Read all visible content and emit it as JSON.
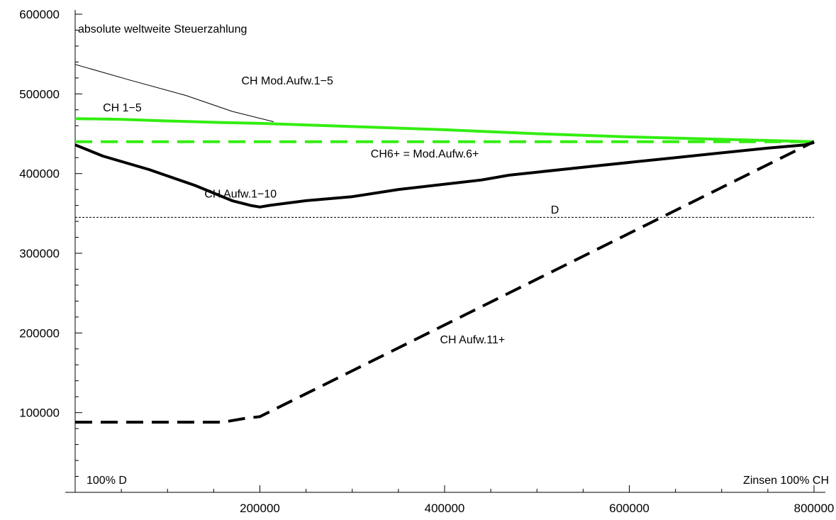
{
  "chart_data": {
    "type": "line",
    "title": "",
    "ylabel": "absolute weltweite Steuerzahlung",
    "xlabel": "",
    "xlim": [
      0,
      810000
    ],
    "ylim": [
      0,
      610000
    ],
    "x_ticks": [
      200000,
      400000,
      600000,
      800000
    ],
    "x_tick_labels": [
      "200000",
      "400000",
      "600000",
      "800000"
    ],
    "y_ticks": [
      100000,
      200000,
      300000,
      400000,
      500000,
      600000
    ],
    "y_tick_labels": [
      "100000",
      "200000",
      "300000",
      "400000",
      "500000",
      "600000"
    ],
    "grid": false,
    "corner_labels": {
      "left": "100% D",
      "right": "Zinsen 100% CH"
    },
    "colors": {
      "green": "#33ee11",
      "black": "#000000"
    },
    "series": [
      {
        "name": "CH Mod.Aufw.1−5",
        "color": "#000000",
        "style": "thin",
        "points": [
          [
            0,
            537000
          ],
          [
            60000,
            517000
          ],
          [
            120000,
            498000
          ],
          [
            170000,
            478000
          ],
          [
            215000,
            465000
          ]
        ]
      },
      {
        "name": "CH 1−5",
        "color": "#33ee11",
        "style": "solid",
        "points": [
          [
            0,
            469000
          ],
          [
            50000,
            468000
          ],
          [
            100000,
            466000
          ],
          [
            160000,
            464000
          ],
          [
            200000,
            463000
          ],
          [
            250000,
            461000
          ],
          [
            300000,
            459000
          ],
          [
            400000,
            455000
          ],
          [
            500000,
            450000
          ],
          [
            600000,
            446000
          ],
          [
            700000,
            443000
          ],
          [
            800000,
            440000
          ]
        ]
      },
      {
        "name": "CH6+ = Mod.Aufw.6+",
        "color": "#33ee11",
        "style": "dashed",
        "points": [
          [
            0,
            440000
          ],
          [
            800000,
            440000
          ]
        ]
      },
      {
        "name": "CH Aufw.1−10",
        "color": "#000000",
        "style": "solid",
        "points": [
          [
            0,
            436000
          ],
          [
            30000,
            422000
          ],
          [
            80000,
            405000
          ],
          [
            130000,
            385000
          ],
          [
            170000,
            366000
          ],
          [
            190000,
            360000
          ],
          [
            200000,
            358000
          ],
          [
            210000,
            360000
          ],
          [
            250000,
            366000
          ],
          [
            300000,
            371000
          ],
          [
            350000,
            380000
          ],
          [
            440000,
            392000
          ],
          [
            470000,
            398000
          ],
          [
            550000,
            408000
          ],
          [
            650000,
            420000
          ],
          [
            750000,
            432000
          ],
          [
            790000,
            436000
          ],
          [
            800000,
            439000
          ]
        ]
      },
      {
        "name": "CH Aufw.11+",
        "color": "#000000",
        "style": "dashed",
        "points": [
          [
            0,
            88000
          ],
          [
            160000,
            88000
          ],
          [
            185000,
            93000
          ],
          [
            200000,
            95000
          ],
          [
            800000,
            440000
          ]
        ]
      },
      {
        "name": "D",
        "color": "#000000",
        "style": "thin-dashed",
        "points": [
          [
            0,
            345000
          ],
          [
            800000,
            345000
          ]
        ]
      }
    ],
    "annotations": [
      {
        "text": "CH Mod.Aufw.1−5",
        "x": 180000,
        "y": 512000
      },
      {
        "text": "CH 1−5",
        "x": 30000,
        "y": 478000
      },
      {
        "text": "CH6+ = Mod.Aufw.6+",
        "x": 320000,
        "y": 420000
      },
      {
        "text": "CH Aufw.1−10",
        "x": 140000,
        "y": 370000
      },
      {
        "text": "D",
        "x": 515000,
        "y": 350000
      },
      {
        "text": "CH Aufw.11+",
        "x": 395000,
        "y": 187000
      }
    ]
  }
}
